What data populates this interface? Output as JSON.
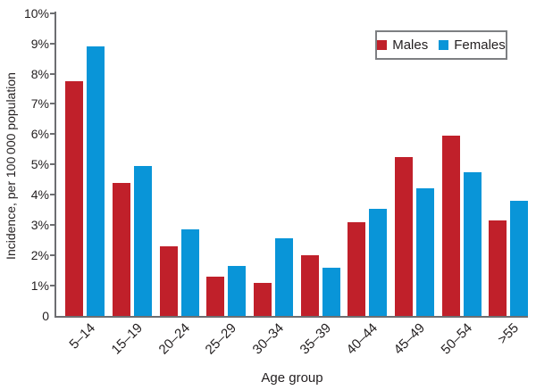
{
  "chart_data": {
    "type": "bar",
    "title": "",
    "categories": [
      "5–14",
      "15–19",
      "20–24",
      "25–29",
      "30–34",
      "35–39",
      "40–44",
      "45–49",
      "50–54",
      ">55"
    ],
    "series": [
      {
        "name": "Males",
        "color": "#c0202a",
        "values": [
          7.75,
          4.4,
          2.3,
          1.3,
          1.1,
          2.0,
          3.1,
          5.25,
          5.95,
          3.15
        ]
      },
      {
        "name": "Females",
        "color": "#0995d8",
        "values": [
          8.9,
          4.95,
          2.85,
          1.65,
          2.55,
          1.6,
          3.55,
          4.2,
          4.75,
          3.8
        ]
      }
    ],
    "xlabel": "Age group",
    "ylabel": "Incidence, per 100 000 population",
    "ylim": [
      0,
      10
    ],
    "ytick_labels": [
      "0",
      "1%",
      "2%",
      "3%",
      "4%",
      "5%",
      "6%",
      "7%",
      "8%",
      "9%",
      "10%"
    ],
    "grid": false,
    "legend_position": "top-right"
  },
  "colors": {
    "axis": "#6d6e71",
    "text": "#231f20",
    "legend_border": "#7d7f82",
    "background": "#ffffff"
  }
}
